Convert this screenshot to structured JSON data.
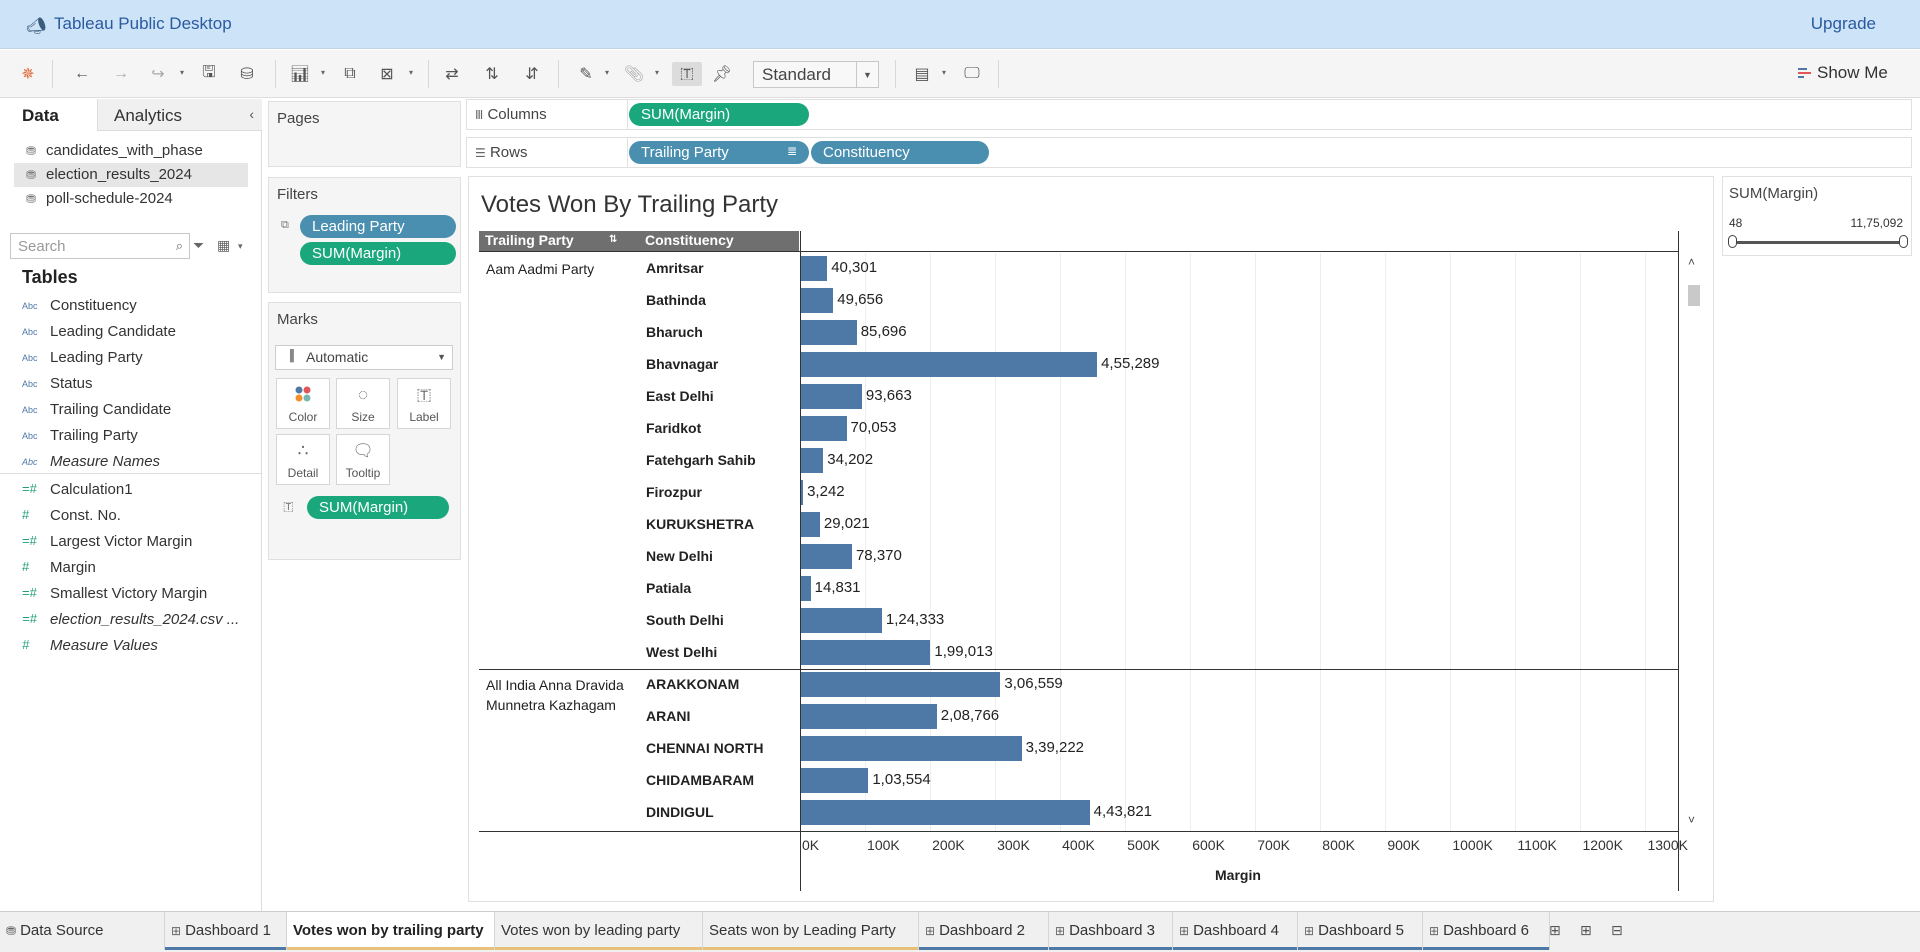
{
  "app": {
    "title": "Tableau Public Desktop",
    "upgrade": "Upgrade"
  },
  "toolbar": {
    "fit": "Standard",
    "show_me": "Show Me"
  },
  "data_pane": {
    "tab_data": "Data",
    "tab_analytics": "Analytics",
    "datasources": [
      "candidates_with_phase",
      "election_results_2024",
      "poll-schedule-2024"
    ],
    "search_placeholder": "Search",
    "tables_header": "Tables",
    "dimensions": [
      {
        "type": "Abc",
        "name": "Constituency"
      },
      {
        "type": "Abc",
        "name": "Leading Candidate"
      },
      {
        "type": "Abc",
        "name": "Leading Party"
      },
      {
        "type": "Abc",
        "name": "Status"
      },
      {
        "type": "Abc",
        "name": "Trailing Candidate"
      },
      {
        "type": "Abc",
        "name": "Trailing Party"
      },
      {
        "type": "Abc",
        "name": "Measure Names"
      }
    ],
    "measures": [
      {
        "type": "=#",
        "name": "Calculation1"
      },
      {
        "type": "#",
        "name": "Const. No."
      },
      {
        "type": "=#",
        "name": "Largest Victor Margin"
      },
      {
        "type": "#",
        "name": "Margin"
      },
      {
        "type": "=#",
        "name": "Smallest Victory Margin"
      },
      {
        "type": "=#",
        "name": "election_results_2024.csv ..."
      },
      {
        "type": "#",
        "name": "Measure Values"
      }
    ]
  },
  "cards": {
    "pages": "Pages",
    "filters": "Filters",
    "filter_pills": [
      "Leading Party",
      "SUM(Margin)"
    ],
    "marks": "Marks",
    "mark_type": "Automatic",
    "mark_buttons": [
      "Color",
      "Size",
      "Label",
      "Detail",
      "Tooltip"
    ],
    "mark_pill": "SUM(Margin)"
  },
  "shelves": {
    "columns_label": "Columns",
    "rows_label": "Rows",
    "columns_pills": [
      "SUM(Margin)"
    ],
    "rows_pills": [
      "Trailing Party",
      "Constituency"
    ]
  },
  "view": {
    "title": "Votes Won By Trailing Party",
    "col_header_1": "Trailing Party",
    "col_header_2": "Constituency",
    "axis_title": "Margin"
  },
  "legend": {
    "title": "SUM(Margin)",
    "min": "48",
    "max": "11,75,092"
  },
  "chart_data": {
    "type": "bar",
    "orientation": "horizontal",
    "xlabel": "Margin",
    "xlim": [
      0,
      1350000
    ],
    "ticks": [
      "0K",
      "100K",
      "200K",
      "300K",
      "400K",
      "500K",
      "600K",
      "700K",
      "800K",
      "900K",
      "1000K",
      "1100K",
      "1200K",
      "1300K"
    ],
    "groups": [
      {
        "name": "Aam Aadmi Party",
        "rows": [
          {
            "category": "Amritsar",
            "value": 40301,
            "label": "40,301"
          },
          {
            "category": "Bathinda",
            "value": 49656,
            "label": "49,656"
          },
          {
            "category": "Bharuch",
            "value": 85696,
            "label": "85,696"
          },
          {
            "category": "Bhavnagar",
            "value": 455289,
            "label": "4,55,289"
          },
          {
            "category": "East Delhi",
            "value": 93663,
            "label": "93,663"
          },
          {
            "category": "Faridkot",
            "value": 70053,
            "label": "70,053"
          },
          {
            "category": "Fatehgarh Sahib",
            "value": 34202,
            "label": "34,202"
          },
          {
            "category": "Firozpur",
            "value": 3242,
            "label": "3,242"
          },
          {
            "category": "KURUKSHETRA",
            "value": 29021,
            "label": "29,021"
          },
          {
            "category": "New Delhi",
            "value": 78370,
            "label": "78,370"
          },
          {
            "category": "Patiala",
            "value": 14831,
            "label": "14,831"
          },
          {
            "category": "South Delhi",
            "value": 124333,
            "label": "1,24,333"
          },
          {
            "category": "West Delhi",
            "value": 199013,
            "label": "1,99,013"
          }
        ]
      },
      {
        "name": "All India Anna Dravida Munnetra Kazhagam",
        "rows": [
          {
            "category": "ARAKKONAM",
            "value": 306559,
            "label": "3,06,559"
          },
          {
            "category": "ARANI",
            "value": 208766,
            "label": "2,08,766"
          },
          {
            "category": "CHENNAI NORTH",
            "value": 339222,
            "label": "3,39,222"
          },
          {
            "category": "CHIDAMBARAM",
            "value": 103554,
            "label": "1,03,554"
          },
          {
            "category": "DINDIGUL",
            "value": 443821,
            "label": "4,43,821"
          }
        ]
      }
    ]
  },
  "sheet_tabs": [
    {
      "label": "Data Source",
      "icon": "datasource",
      "active": false,
      "underline": ""
    },
    {
      "label": "Dashboard 1",
      "icon": "dashboard",
      "active": false,
      "underline": "#4e79a7"
    },
    {
      "label": "Votes won by trailing party",
      "icon": "",
      "active": true,
      "underline": "#e8c07a"
    },
    {
      "label": "Votes won by leading party",
      "icon": "",
      "active": false,
      "underline": "#e8c07a"
    },
    {
      "label": "Seats won by Leading Party",
      "icon": "",
      "active": false,
      "underline": "#e8c07a"
    },
    {
      "label": "Dashboard 2",
      "icon": "dashboard",
      "active": false,
      "underline": "#4e79a7"
    },
    {
      "label": "Dashboard 3",
      "icon": "dashboard",
      "active": false,
      "underline": "#4e79a7"
    },
    {
      "label": "Dashboard 4",
      "icon": "dashboard",
      "active": false,
      "underline": "#4e79a7"
    },
    {
      "label": "Dashboard 5",
      "icon": "dashboard",
      "active": false,
      "underline": "#4e79a7"
    },
    {
      "label": "Dashboard 6",
      "icon": "dashboard",
      "active": false,
      "underline": "#4e79a7"
    }
  ],
  "colors": {
    "bar": "#4e79a7",
    "dimension_pill": "#4a8fb0",
    "measure_pill": "#19a77b",
    "titlebar": "#cde3f8"
  }
}
